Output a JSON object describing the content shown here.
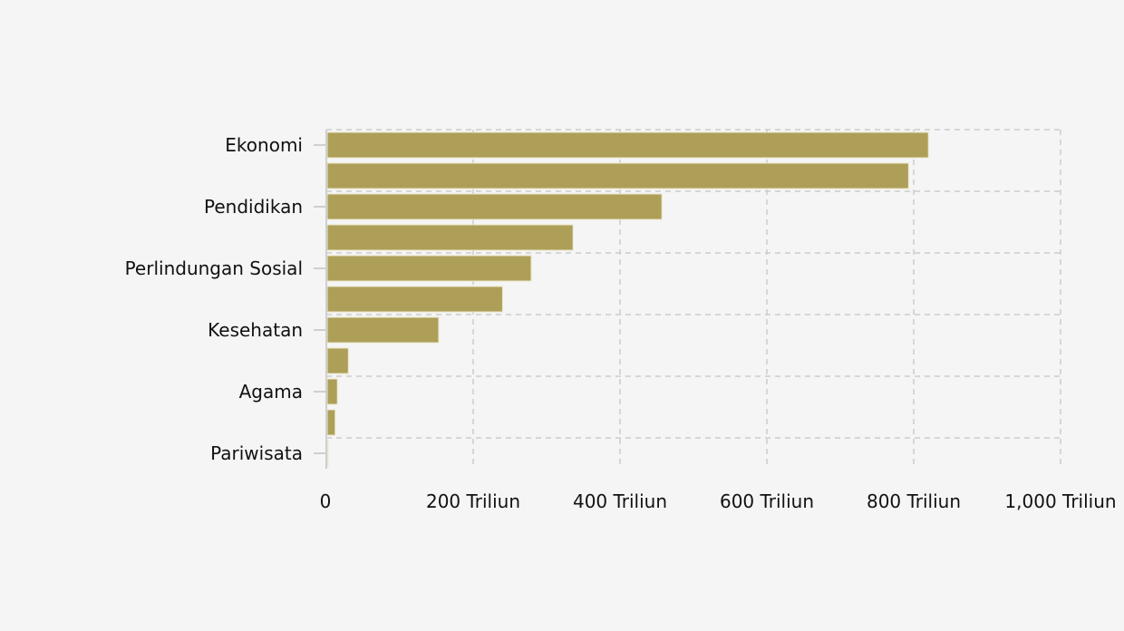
{
  "chart_data": {
    "type": "bar",
    "orientation": "horizontal",
    "title": "",
    "xlabel": "",
    "ylabel": "",
    "categories": [
      "Ekonomi",
      "",
      "Pendidikan",
      "",
      "Perlindungan Sosial",
      "",
      "Kesehatan",
      "",
      "Agama",
      "",
      "Pariwisata"
    ],
    "values": [
      820,
      793,
      457,
      336,
      279,
      240,
      153,
      30,
      15,
      12,
      2
    ],
    "value_unit": "Triliun",
    "xlim": [
      0,
      1000
    ],
    "x_ticks": [
      0,
      200,
      400,
      600,
      800,
      1000
    ],
    "x_tick_labels": [
      "0",
      "200 Triliun",
      "400 Triliun",
      "600 Triliun",
      "800 Triliun",
      "1,000 Triliun"
    ],
    "grid": true,
    "bar_color": "#ad9f58",
    "grid_color": "#cccccc"
  }
}
